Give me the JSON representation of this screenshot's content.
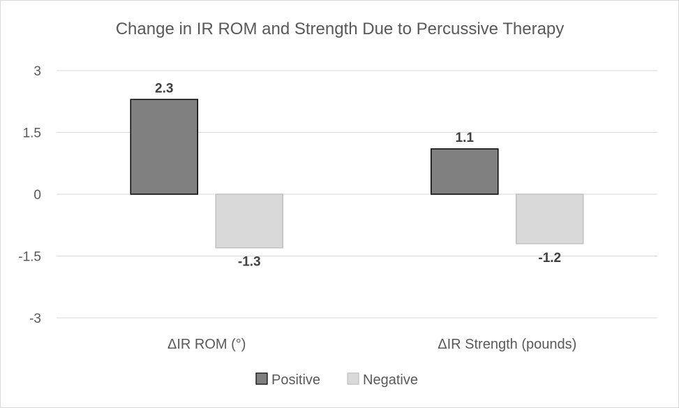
{
  "chart_data": {
    "type": "bar",
    "title": "Change in IR ROM and Strength Due to Percussive Therapy",
    "categories": [
      "ΔIR ROM (°)",
      "ΔIR Strength (pounds)"
    ],
    "series": [
      {
        "name": "Positive",
        "values": [
          2.3,
          1.1
        ],
        "color": "#808080",
        "stroke": "#000000"
      },
      {
        "name": "Negative",
        "values": [
          -1.3,
          -1.2
        ],
        "color": "#d9d9d9",
        "stroke": "#bfbfbf"
      }
    ],
    "data_labels": [
      [
        "2.3",
        "1.1"
      ],
      [
        "-1.3",
        "-1.2"
      ]
    ],
    "yticks": [
      3,
      1.5,
      0,
      -1.5,
      -3
    ],
    "ytick_labels": [
      "3",
      "1.5",
      "0",
      "-1.5",
      "-3"
    ],
    "ylim": [
      -3,
      3
    ],
    "grid": true,
    "legend_position": "bottom",
    "xlabel": "",
    "ylabel": ""
  }
}
